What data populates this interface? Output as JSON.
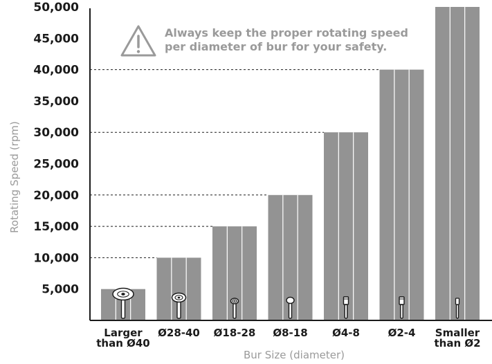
{
  "chart_data": {
    "type": "bar",
    "title": "",
    "xlabel": "Bur Size (diameter)",
    "ylabel": "Rotating Speed (rpm)",
    "ylim": [
      0,
      50000
    ],
    "y_ticks": [
      "5,000",
      "10,000",
      "15,000",
      "20,000",
      "25,000",
      "30,000",
      "35,000",
      "40,000",
      "45,000",
      "50,000"
    ],
    "categories": [
      [
        "Larger",
        "than Ø40"
      ],
      [
        "Ø28-40"
      ],
      [
        "Ø18-28"
      ],
      [
        "Ø8-18"
      ],
      [
        "Ø4-8"
      ],
      [
        "Ø2-4"
      ],
      [
        "Smaller",
        "than Ø2"
      ]
    ],
    "values": [
      5000,
      10000,
      15000,
      20000,
      30000,
      40000,
      50000
    ],
    "reference_lines": [
      10000,
      15000,
      20000,
      30000,
      40000
    ],
    "bur_icons": [
      "large-disc-bur",
      "disc-bur",
      "small-disc-bur",
      "round-bur",
      "cylinder-bur",
      "cylinder-bur",
      "thin-cylinder-bur"
    ],
    "colors": {
      "bar": "#939393",
      "bar_divider": "#ffffff",
      "axis": "#1a1a1a",
      "muted_text": "#9a9a9a"
    },
    "grid": false,
    "legend": "none"
  },
  "notice": {
    "icon": "warning-triangle-icon",
    "lines": [
      "Always keep the proper rotating speed",
      "per diameter of bur for your safety."
    ]
  }
}
